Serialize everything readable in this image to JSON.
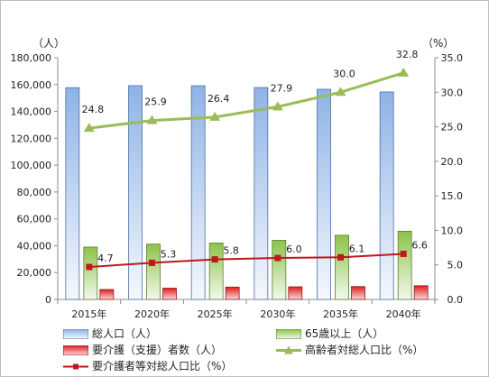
{
  "chart_data": {
    "type": "bar",
    "categories": [
      "2015年",
      "2020年",
      "2025年",
      "2030年",
      "2035年",
      "2040年"
    ],
    "left_axis": {
      "unit_label": "（人）",
      "range": [
        0,
        180000
      ],
      "ticks": [
        "0",
        "20,000",
        "40,000",
        "60,000",
        "80,000",
        "100,000",
        "120,000",
        "140,000",
        "160,000",
        "180,000"
      ]
    },
    "right_axis": {
      "unit_label": "（%）",
      "range": [
        0,
        35
      ],
      "ticks": [
        "0.0",
        "5.0",
        "10.0",
        "15.0",
        "20.0",
        "25.0",
        "30.0",
        "35.0"
      ]
    },
    "series": [
      {
        "name": "総人口（人）",
        "kind": "bar",
        "axis": "left",
        "color": "#8eb4e3",
        "values": [
          157700,
          159200,
          159100,
          157800,
          156500,
          154500
        ]
      },
      {
        "name": "65歳以上（人）",
        "kind": "bar",
        "axis": "left",
        "color": "#92d050",
        "values": [
          39000,
          41200,
          42000,
          44000,
          47800,
          50800
        ]
      },
      {
        "name": "要介護（支援）者数（人）",
        "kind": "bar",
        "axis": "left",
        "color": "#e53935",
        "values": [
          7400,
          8400,
          9200,
          9400,
          9600,
          10200
        ]
      },
      {
        "name": "高齢者対総人口比（%）",
        "kind": "line",
        "axis": "right",
        "color": "#9bbb59",
        "marker": "triangle",
        "values": [
          24.8,
          25.9,
          26.4,
          27.9,
          30.0,
          32.8
        ],
        "labels": [
          "24.8",
          "25.9",
          "26.4",
          "27.9",
          "30.0",
          "32.8"
        ]
      },
      {
        "name": "要介護者等対総人口比（%）",
        "kind": "line",
        "axis": "right",
        "color": "#c0161c",
        "marker": "square",
        "values": [
          4.7,
          5.3,
          5.8,
          6.0,
          6.1,
          6.6
        ],
        "labels": [
          "4.7",
          "5.3",
          "5.8",
          "6.0",
          "6.1",
          "6.6"
        ]
      }
    ],
    "grid": false,
    "legend_position": "bottom"
  }
}
